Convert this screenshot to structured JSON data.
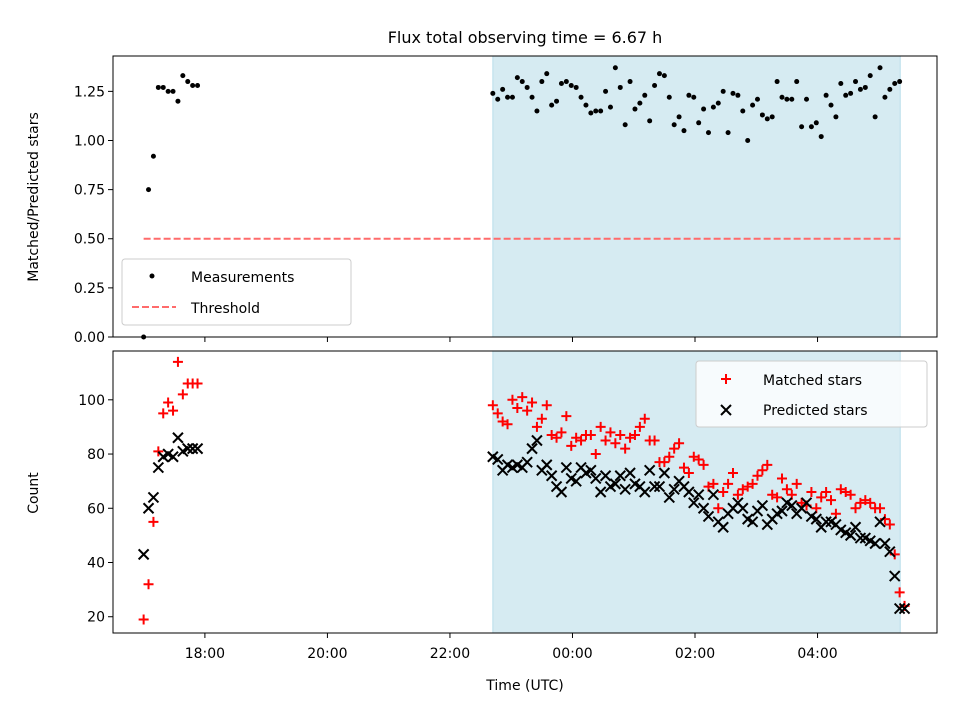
{
  "figure_title": "Flux total observing time = 6.67 h",
  "colors": {
    "highlight": "#add8e6",
    "measurement": "#000000",
    "threshold": "#ff6b6b",
    "matched": "#ff0000",
    "predicted": "#000000"
  },
  "chart_data": [
    {
      "type": "scatter",
      "title": "Flux total observing time = 6.67 h",
      "xlabel": "",
      "ylabel": "Matched/Predicted stars",
      "x_unit": "hours since 00:00 UTC (negative = previous day)",
      "xlim": [
        -7.5,
        5.95
      ],
      "ylim": [
        0.0,
        1.43
      ],
      "yticks": [
        "0.00",
        "0.25",
        "0.50",
        "0.75",
        "1.00",
        "1.25"
      ],
      "grid": false,
      "legend_position": "lower-left",
      "highlight_span": [
        -1.3,
        5.35
      ],
      "threshold": {
        "name": "Threshold",
        "value": 0.5,
        "x_range": [
          -7.0,
          5.35
        ],
        "style": "dashed"
      },
      "series": [
        {
          "name": "Measurements",
          "marker": "dot",
          "x": [
            -7.0,
            -6.92,
            -6.84,
            -6.76,
            -6.68,
            -6.6,
            -6.52,
            -6.44,
            -6.36,
            -6.28,
            -6.2,
            -6.12,
            -1.3,
            -1.22,
            -1.14,
            -1.06,
            -0.98,
            -0.9,
            -0.82,
            -0.74,
            -0.66,
            -0.58,
            -0.5,
            -0.42,
            -0.34,
            -0.26,
            -0.18,
            -0.1,
            -0.02,
            0.06,
            0.14,
            0.22,
            0.3,
            0.38,
            0.46,
            0.54,
            0.62,
            0.7,
            0.78,
            0.86,
            0.94,
            1.02,
            1.1,
            1.18,
            1.26,
            1.34,
            1.42,
            1.5,
            1.58,
            1.66,
            1.74,
            1.82,
            1.9,
            1.98,
            2.06,
            2.14,
            2.22,
            2.3,
            2.38,
            2.46,
            2.54,
            2.62,
            2.7,
            2.78,
            2.86,
            2.94,
            3.02,
            3.1,
            3.18,
            3.26,
            3.34,
            3.42,
            3.5,
            3.58,
            3.66,
            3.74,
            3.82,
            3.9,
            3.98,
            4.06,
            4.14,
            4.22,
            4.3,
            4.38,
            4.46,
            4.54,
            4.62,
            4.7,
            4.78,
            4.86,
            4.94,
            5.02,
            5.1,
            5.18,
            5.26,
            5.34
          ],
          "y": [
            0.0,
            0.75,
            0.92,
            1.27,
            1.27,
            1.25,
            1.25,
            1.2,
            1.33,
            1.3,
            1.28,
            1.28,
            1.24,
            1.21,
            1.26,
            1.22,
            1.22,
            1.32,
            1.3,
            1.27,
            1.22,
            1.15,
            1.3,
            1.34,
            1.18,
            1.2,
            1.29,
            1.3,
            1.28,
            1.27,
            1.22,
            1.18,
            1.14,
            1.15,
            1.15,
            1.25,
            1.17,
            1.37,
            1.27,
            1.08,
            1.3,
            1.16,
            1.19,
            1.23,
            1.1,
            1.28,
            1.34,
            1.33,
            1.22,
            1.08,
            1.12,
            1.05,
            1.23,
            1.22,
            1.09,
            1.16,
            1.04,
            1.17,
            1.19,
            1.25,
            1.04,
            1.24,
            1.23,
            1.15,
            1.0,
            1.18,
            1.21,
            1.13,
            1.11,
            1.12,
            1.3,
            1.22,
            1.21,
            1.21,
            1.3,
            1.07,
            1.21,
            1.07,
            1.09,
            1.02,
            1.23,
            1.18,
            1.12,
            1.29,
            1.23,
            1.24,
            1.3,
            1.26,
            1.27,
            1.33,
            1.12,
            1.37,
            1.22,
            1.26,
            1.29,
            1.3
          ]
        }
      ]
    },
    {
      "type": "scatter",
      "title": "",
      "xlabel": "Time (UTC)",
      "ylabel": "Count",
      "x_unit": "hours since 00:00 UTC (negative = previous day)",
      "xlim": [
        -7.5,
        5.95
      ],
      "ylim": [
        14,
        118
      ],
      "yticks": [
        "20",
        "40",
        "60",
        "80",
        "100"
      ],
      "xtick_positions": [
        -6,
        -4,
        -2,
        0,
        2,
        4
      ],
      "xtick_labels": [
        "18:00",
        "20:00",
        "22:00",
        "00:00",
        "02:00",
        "04:00"
      ],
      "grid": false,
      "legend_position": "upper-right",
      "highlight_span": [
        -1.3,
        5.35
      ],
      "series": [
        {
          "name": "Matched stars",
          "marker": "plus",
          "color": "#ff0000",
          "x": [
            -7.0,
            -6.92,
            -6.84,
            -6.76,
            -6.68,
            -6.6,
            -6.52,
            -6.44,
            -6.36,
            -6.28,
            -6.2,
            -6.12,
            -1.3,
            -1.22,
            -1.14,
            -1.06,
            -0.98,
            -0.9,
            -0.82,
            -0.74,
            -0.66,
            -0.58,
            -0.5,
            -0.42,
            -0.34,
            -0.26,
            -0.18,
            -0.1,
            -0.02,
            0.06,
            0.14,
            0.22,
            0.3,
            0.38,
            0.46,
            0.54,
            0.62,
            0.7,
            0.78,
            0.86,
            0.94,
            1.02,
            1.1,
            1.18,
            1.26,
            1.34,
            1.42,
            1.5,
            1.58,
            1.66,
            1.74,
            1.82,
            1.9,
            1.98,
            2.06,
            2.14,
            2.22,
            2.3,
            2.38,
            2.46,
            2.54,
            2.62,
            2.7,
            2.78,
            2.86,
            2.94,
            3.02,
            3.1,
            3.18,
            3.26,
            3.34,
            3.42,
            3.5,
            3.58,
            3.66,
            3.74,
            3.82,
            3.9,
            3.98,
            4.06,
            4.14,
            4.22,
            4.3,
            4.38,
            4.46,
            4.54,
            4.62,
            4.7,
            4.78,
            4.86,
            4.94,
            5.02,
            5.1,
            5.18,
            5.26,
            5.34,
            5.42
          ],
          "y": [
            19,
            32,
            55,
            81,
            95,
            99,
            96,
            114,
            102,
            106,
            106,
            106,
            98,
            95,
            92,
            91,
            100,
            97,
            101,
            96,
            99,
            90,
            93,
            98,
            87,
            86,
            88,
            94,
            83,
            86,
            85,
            87,
            87,
            80,
            90,
            85,
            88,
            84,
            87,
            82,
            86,
            87,
            90,
            93,
            85,
            85,
            77,
            77,
            79,
            82,
            84,
            75,
            73,
            79,
            78,
            76,
            68,
            69,
            60,
            66,
            69,
            73,
            65,
            67,
            68,
            69,
            72,
            74,
            76,
            65,
            64,
            71,
            67,
            65,
            69,
            62,
            61,
            66,
            60,
            64,
            66,
            63,
            58,
            67,
            66,
            65,
            60,
            62,
            63,
            62,
            60,
            60,
            56,
            54,
            43,
            29,
            24
          ]
        },
        {
          "name": "Predicted stars",
          "marker": "x",
          "color": "#000000",
          "x": [
            -7.0,
            -6.92,
            -6.84,
            -6.76,
            -6.68,
            -6.6,
            -6.52,
            -6.44,
            -6.36,
            -6.28,
            -6.2,
            -6.12,
            -1.3,
            -1.22,
            -1.14,
            -1.06,
            -0.98,
            -0.9,
            -0.82,
            -0.74,
            -0.66,
            -0.58,
            -0.5,
            -0.42,
            -0.34,
            -0.26,
            -0.18,
            -0.1,
            -0.02,
            0.06,
            0.14,
            0.22,
            0.3,
            0.38,
            0.46,
            0.54,
            0.62,
            0.7,
            0.78,
            0.86,
            0.94,
            1.02,
            1.1,
            1.18,
            1.26,
            1.34,
            1.42,
            1.5,
            1.58,
            1.66,
            1.74,
            1.82,
            1.9,
            1.98,
            2.06,
            2.14,
            2.22,
            2.3,
            2.38,
            2.46,
            2.54,
            2.62,
            2.7,
            2.78,
            2.86,
            2.94,
            3.02,
            3.1,
            3.18,
            3.26,
            3.34,
            3.42,
            3.5,
            3.58,
            3.66,
            3.74,
            3.82,
            3.9,
            3.98,
            4.06,
            4.14,
            4.22,
            4.3,
            4.38,
            4.46,
            4.54,
            4.62,
            4.7,
            4.78,
            4.86,
            4.94,
            5.02,
            5.1,
            5.18,
            5.26,
            5.34,
            5.42
          ],
          "y": [
            43,
            60,
            64,
            75,
            79,
            80,
            79,
            86,
            81,
            82,
            82,
            82,
            79,
            78,
            74,
            76,
            75,
            76,
            75,
            77,
            82,
            85,
            74,
            76,
            72,
            68,
            66,
            75,
            71,
            70,
            75,
            73,
            74,
            71,
            66,
            72,
            68,
            69,
            72,
            67,
            73,
            69,
            68,
            66,
            74,
            68,
            68,
            73,
            64,
            67,
            70,
            68,
            66,
            62,
            65,
            60,
            57,
            65,
            55,
            53,
            58,
            60,
            62,
            60,
            56,
            55,
            59,
            61,
            54,
            56,
            58,
            59,
            62,
            61,
            58,
            60,
            62,
            57,
            56,
            53,
            55,
            55,
            54,
            52,
            51,
            50,
            53,
            49,
            49,
            48,
            47,
            55,
            47,
            44,
            35,
            23,
            23
          ]
        }
      ]
    }
  ]
}
